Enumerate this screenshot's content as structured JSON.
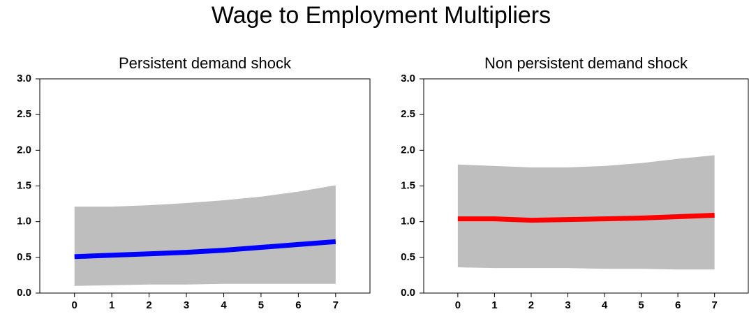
{
  "title": "Wage to Employment Multipliers",
  "chart_data": [
    {
      "type": "line",
      "title": "Persistent demand shock",
      "x": [
        0,
        1,
        2,
        3,
        4,
        5,
        6,
        7
      ],
      "values": [
        0.51,
        0.53,
        0.55,
        0.57,
        0.6,
        0.64,
        0.68,
        0.72
      ],
      "upper": [
        1.21,
        1.21,
        1.23,
        1.26,
        1.3,
        1.35,
        1.42,
        1.51
      ],
      "lower": [
        0.1,
        0.11,
        0.12,
        0.12,
        0.13,
        0.13,
        0.13,
        0.13
      ],
      "color": "#0000ff",
      "band_color": "#bebebe",
      "xlim": [
        -0.93,
        7.92
      ],
      "xticks": [
        0,
        1,
        2,
        3,
        4,
        5,
        6,
        7
      ],
      "ylim": [
        0,
        3
      ],
      "yticks": [
        {
          "value": 0,
          "label": "0.0"
        },
        {
          "value": 0.5,
          "label": "0.5"
        },
        {
          "value": 1,
          "label": "1.0"
        },
        {
          "value": 1.5,
          "label": "1.5"
        },
        {
          "value": 2,
          "label": "2.0"
        },
        {
          "value": 2.5,
          "label": "2.5"
        },
        {
          "value": 3,
          "label": "3.0"
        }
      ]
    },
    {
      "type": "line",
      "title": "Non persistent demand shock",
      "x": [
        0,
        1,
        2,
        3,
        4,
        5,
        6,
        7
      ],
      "values": [
        1.04,
        1.04,
        1.02,
        1.03,
        1.04,
        1.05,
        1.07,
        1.09
      ],
      "upper": [
        1.8,
        1.78,
        1.76,
        1.76,
        1.78,
        1.82,
        1.88,
        1.93
      ],
      "lower": [
        0.36,
        0.35,
        0.35,
        0.35,
        0.34,
        0.34,
        0.33,
        0.33
      ],
      "color": "#ff0000",
      "band_color": "#bebebe",
      "xlim": [
        -0.93,
        7.92
      ],
      "xticks": [
        0,
        1,
        2,
        3,
        4,
        5,
        6,
        7
      ],
      "ylim": [
        0,
        3
      ],
      "yticks": [
        {
          "value": 0,
          "label": "0.0"
        },
        {
          "value": 0.5,
          "label": "0.5"
        },
        {
          "value": 1,
          "label": "1.0"
        },
        {
          "value": 1.5,
          "label": "1.5"
        },
        {
          "value": 2,
          "label": "2.0"
        },
        {
          "value": 2.5,
          "label": "2.5"
        },
        {
          "value": 3,
          "label": "3.0"
        }
      ]
    }
  ]
}
